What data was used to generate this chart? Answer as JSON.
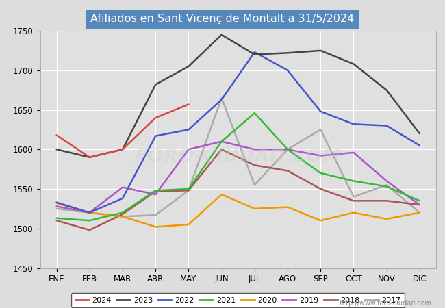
{
  "title": "Afiliados en Sant Vicenç de Montalt a 31/5/2024",
  "ylim": [
    1450,
    1750
  ],
  "months": [
    "ENE",
    "FEB",
    "MAR",
    "ABR",
    "MAY",
    "JUN",
    "JUL",
    "AGO",
    "SEP",
    "OCT",
    "NOV",
    "DIC"
  ],
  "series": {
    "2024": {
      "color": "#dd4444",
      "values": [
        1618,
        1590,
        1600,
        1640,
        1657,
        null,
        null,
        null,
        null,
        null,
        null,
        null
      ]
    },
    "2023": {
      "color": "#444444",
      "values": [
        1600,
        1590,
        1600,
        1682,
        1705,
        1745,
        1720,
        1722,
        1725,
        1708,
        1675,
        1620
      ]
    },
    "2022": {
      "color": "#4455cc",
      "values": [
        1533,
        1520,
        1538,
        1617,
        1625,
        1663,
        1723,
        1700,
        1648,
        1632,
        1630,
        1605
      ]
    },
    "2021": {
      "color": "#33bb33",
      "values": [
        1513,
        1510,
        1520,
        1548,
        1550,
        1610,
        1646,
        1600,
        1570,
        1560,
        1553,
        1535
      ]
    },
    "2020": {
      "color": "#ee9900",
      "values": [
        1532,
        1520,
        1515,
        1502,
        1505,
        1543,
        1525,
        1527,
        1510,
        1520,
        1512,
        1520
      ]
    },
    "2019": {
      "color": "#aa55cc",
      "values": [
        1528,
        1520,
        1552,
        1543,
        1600,
        1610,
        1600,
        1600,
        1592,
        1596,
        1560,
        1530
      ]
    },
    "2018": {
      "color": "#aa5555",
      "values": [
        1510,
        1498,
        1518,
        1547,
        1548,
        1600,
        1580,
        1573,
        1550,
        1535,
        1535,
        1530
      ]
    },
    "2017": {
      "color": "#aaaaaa",
      "values": [
        1525,
        1520,
        1515,
        1517,
        1548,
        1665,
        1555,
        1600,
        1625,
        1540,
        1555,
        1520
      ]
    }
  },
  "legend_order": [
    "2024",
    "2023",
    "2022",
    "2021",
    "2020",
    "2019",
    "2018",
    "2017"
  ],
  "title_bg": "#5588bb",
  "fig_bg": "#dddddd",
  "plot_bg": "#e0e0e0",
  "grid_color": "#ffffff",
  "watermark": "http://www.foro-ciudad.com"
}
